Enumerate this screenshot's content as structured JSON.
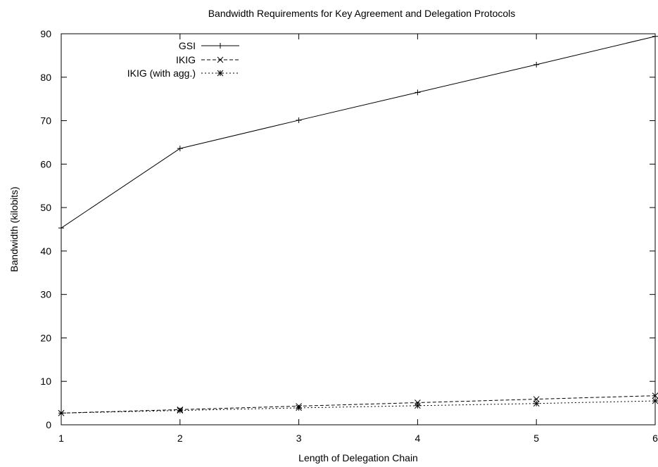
{
  "chart_data": {
    "type": "line",
    "title": "Bandwidth Requirements for Key Agreement and Delegation Protocols",
    "xlabel": "Length of Delegation Chain",
    "ylabel": "Bandwidth (kilobits)",
    "xlim": [
      1,
      6
    ],
    "ylim": [
      0,
      90
    ],
    "x_ticks": [
      "1",
      "2",
      "3",
      "4",
      "5",
      "6"
    ],
    "y_ticks": [
      "0",
      "10",
      "20",
      "30",
      "40",
      "50",
      "60",
      "70",
      "80",
      "90"
    ],
    "x": [
      1,
      2,
      3,
      4,
      5,
      6
    ],
    "grid": false,
    "legend_position": "top-left",
    "series": [
      {
        "name": "GSI",
        "values": [
          45.3,
          63.6,
          70.1,
          76.5,
          82.9,
          89.4
        ],
        "marker": "plus",
        "dash": "solid"
      },
      {
        "name": "IKIG",
        "values": [
          2.7,
          3.5,
          4.3,
          5.1,
          5.9,
          6.7
        ],
        "marker": "cross",
        "dash": "dashed"
      },
      {
        "name": "IKIG (with agg.)",
        "values": [
          2.7,
          3.3,
          3.9,
          4.4,
          4.9,
          5.5
        ],
        "marker": "star",
        "dash": "dotted"
      }
    ]
  }
}
